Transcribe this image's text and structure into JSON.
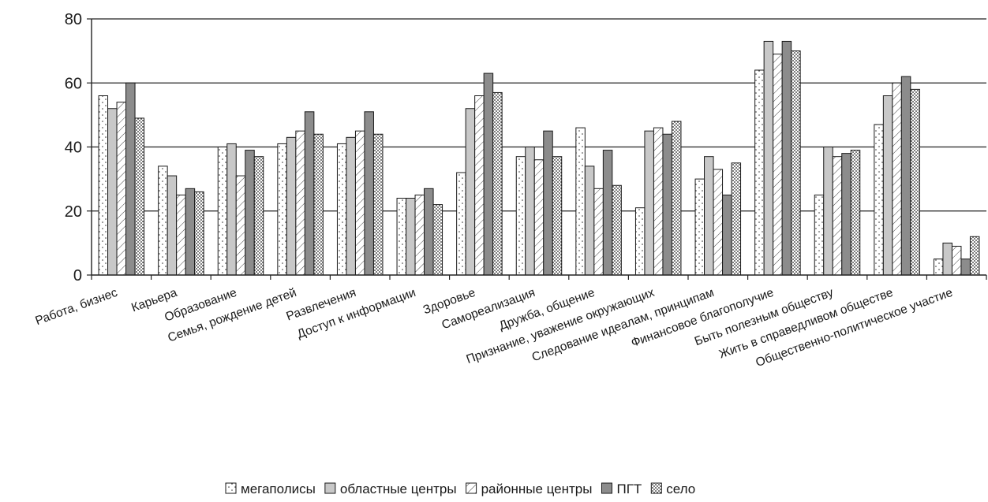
{
  "chart_data": {
    "type": "bar",
    "title": "",
    "xlabel": "",
    "ylabel": "",
    "ylim": [
      0,
      80
    ],
    "yticks": [
      0,
      20,
      40,
      60,
      80
    ],
    "grid": "horizontal",
    "legend_position": "bottom",
    "categories": [
      "Работа, бизнес",
      "Карьера",
      "Образование",
      "Семья, рождение детей",
      "Развлечения",
      "Доступ к информации",
      "Здоровье",
      "Самореализация",
      "Дружба, общение",
      "Признание, уважение окружающих",
      "Следование идеалам, принципам",
      "Финансовое благополучие",
      "Быть полезным обществу",
      "Жить в справедливом обществе",
      "Общественно-политическое участие"
    ],
    "series": [
      {
        "name": "мегаполисы",
        "pattern": "dots-sparse",
        "color": "#ffffff",
        "values": [
          56,
          34,
          40,
          41,
          41,
          24,
          32,
          37,
          46,
          21,
          30,
          64,
          25,
          47,
          5
        ]
      },
      {
        "name": "областные центры",
        "pattern": "solid",
        "color": "#c8c8c8",
        "values": [
          52,
          31,
          41,
          43,
          43,
          24,
          52,
          40,
          34,
          45,
          37,
          73,
          40,
          56,
          10
        ]
      },
      {
        "name": "районные центры",
        "pattern": "diagonal",
        "color": "#ffffff",
        "values": [
          54,
          25,
          31,
          45,
          45,
          25,
          56,
          36,
          27,
          46,
          33,
          69,
          37,
          60,
          9
        ]
      },
      {
        "name": "ПГТ",
        "pattern": "solid",
        "color": "#8c8c8c",
        "values": [
          60,
          27,
          39,
          51,
          51,
          27,
          63,
          45,
          39,
          44,
          25,
          73,
          38,
          62,
          5
        ]
      },
      {
        "name": "село",
        "pattern": "dots-dense",
        "color": "#ffffff",
        "values": [
          49,
          26,
          37,
          44,
          44,
          22,
          57,
          37,
          28,
          48,
          35,
          70,
          39,
          58,
          12
        ]
      }
    ]
  }
}
